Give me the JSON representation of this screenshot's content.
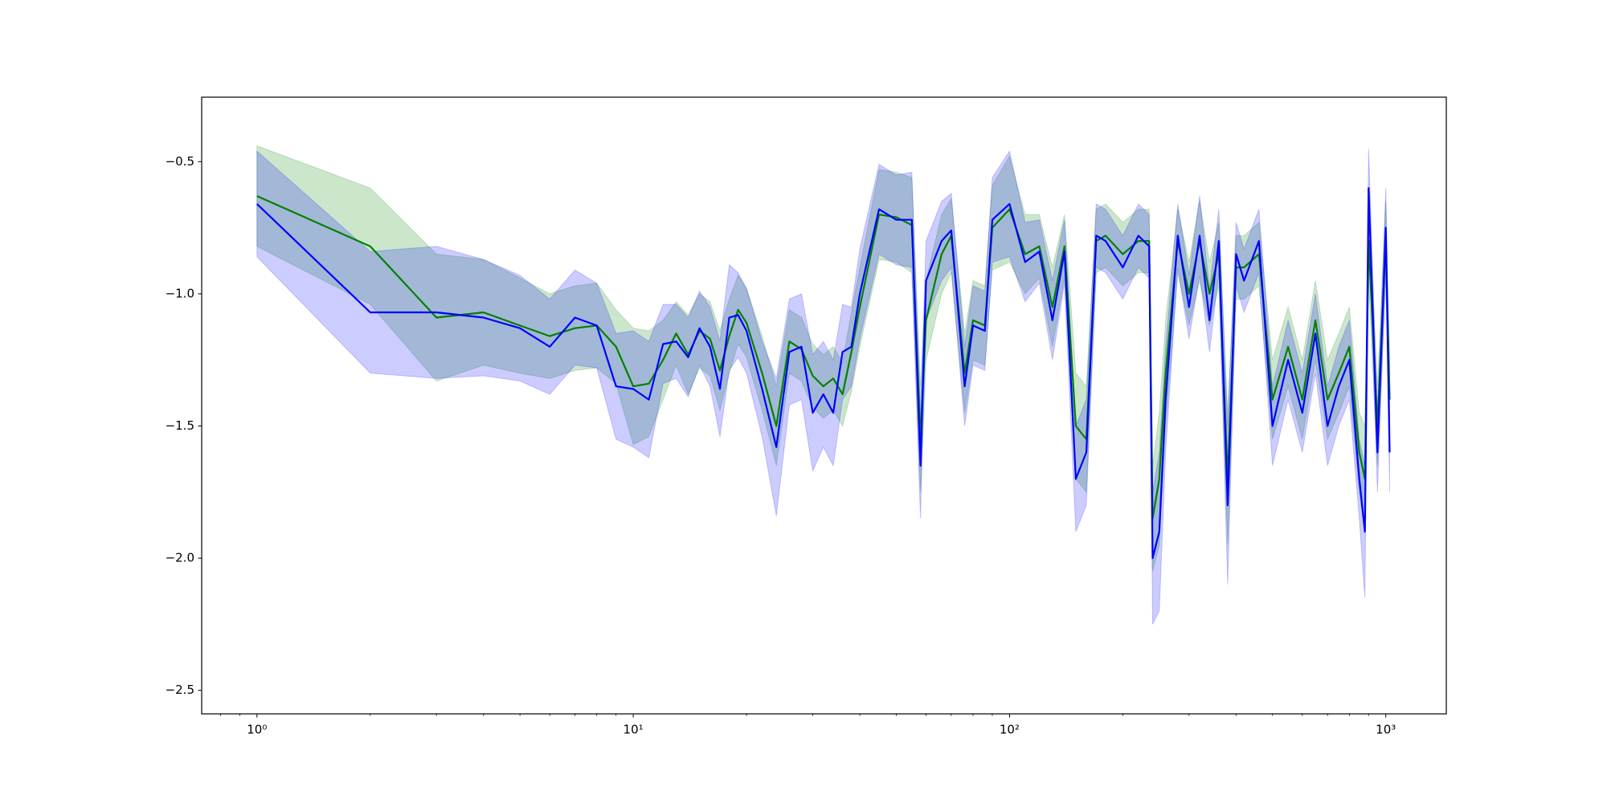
{
  "chart_data": {
    "type": "line",
    "xscale": "log",
    "x": [
      1,
      2,
      3,
      4,
      5,
      6,
      7,
      8,
      9,
      10,
      11,
      12,
      13,
      14,
      15,
      16,
      17,
      18,
      19,
      20,
      22,
      24,
      26,
      28,
      30,
      32,
      34,
      36,
      38,
      40,
      45,
      50,
      55,
      58,
      60,
      66,
      70,
      76,
      80,
      86,
      90,
      100,
      110,
      120,
      130,
      140,
      150,
      160,
      170,
      180,
      200,
      220,
      235,
      240,
      250,
      260,
      280,
      300,
      320,
      340,
      360,
      380,
      400,
      420,
      460,
      500,
      550,
      600,
      650,
      700,
      750,
      800,
      850,
      880,
      900,
      950,
      1000,
      1024
    ],
    "series": [
      {
        "color": "#008000",
        "values": [
          -0.63,
          -0.82,
          -1.09,
          -1.07,
          -1.12,
          -1.16,
          -1.13,
          -1.12,
          -1.2,
          -1.35,
          -1.34,
          -1.25,
          -1.15,
          -1.23,
          -1.14,
          -1.17,
          -1.29,
          -1.16,
          -1.06,
          -1.11,
          -1.3,
          -1.5,
          -1.18,
          -1.21,
          -1.31,
          -1.35,
          -1.32,
          -1.38,
          -1.22,
          -1.05,
          -0.7,
          -0.71,
          -0.74,
          -1.55,
          -1.1,
          -0.85,
          -0.78,
          -1.3,
          -1.1,
          -1.12,
          -0.75,
          -0.68,
          -0.85,
          -0.82,
          -1.05,
          -0.82,
          -1.5,
          -1.55,
          -0.8,
          -0.78,
          -0.85,
          -0.8,
          -0.8,
          -1.85,
          -1.7,
          -1.3,
          -0.8,
          -1.0,
          -0.8,
          -1.0,
          -0.85,
          -1.7,
          -0.9,
          -0.9,
          -0.85,
          -1.4,
          -1.2,
          -1.4,
          -1.1,
          -1.4,
          -1.3,
          -1.2,
          -1.6,
          -1.7,
          -0.8,
          -1.5,
          -0.8,
          -1.4
        ],
        "error": [
          0.19,
          0.22,
          0.24,
          0.2,
          0.18,
          0.16,
          0.16,
          0.16,
          0.14,
          0.22,
          0.2,
          0.15,
          0.12,
          0.15,
          0.14,
          0.14,
          0.15,
          0.14,
          0.13,
          0.13,
          0.14,
          0.15,
          0.12,
          0.12,
          0.12,
          0.12,
          0.12,
          0.12,
          0.15,
          0.15,
          0.17,
          0.17,
          0.18,
          0.2,
          0.15,
          0.15,
          0.14,
          0.15,
          0.15,
          0.15,
          0.16,
          0.2,
          0.15,
          0.12,
          0.15,
          0.12,
          0.2,
          0.2,
          0.12,
          0.12,
          0.12,
          0.12,
          0.12,
          0.2,
          0.25,
          0.2,
          0.12,
          0.12,
          0.15,
          0.12,
          0.12,
          0.25,
          0.12,
          0.12,
          0.12,
          0.15,
          0.15,
          0.15,
          0.15,
          0.15,
          0.15,
          0.15,
          0.15,
          0.2,
          0.15,
          0.15,
          0.15,
          0.15
        ]
      },
      {
        "color": "#0000ff",
        "values": [
          -0.66,
          -1.07,
          -1.07,
          -1.09,
          -1.13,
          -1.2,
          -1.09,
          -1.12,
          -1.35,
          -1.36,
          -1.4,
          -1.19,
          -1.18,
          -1.24,
          -1.13,
          -1.2,
          -1.36,
          -1.09,
          -1.08,
          -1.14,
          -1.36,
          -1.58,
          -1.22,
          -1.2,
          -1.45,
          -1.38,
          -1.45,
          -1.22,
          -1.2,
          -1.0,
          -0.68,
          -0.72,
          -0.72,
          -1.65,
          -0.95,
          -0.8,
          -0.76,
          -1.35,
          -1.12,
          -1.14,
          -0.72,
          -0.66,
          -0.88,
          -0.84,
          -1.1,
          -0.84,
          -1.7,
          -1.6,
          -0.78,
          -0.8,
          -0.9,
          -0.78,
          -0.82,
          -2.0,
          -1.9,
          -1.4,
          -0.78,
          -1.05,
          -0.78,
          -1.1,
          -0.8,
          -1.8,
          -0.85,
          -0.95,
          -0.8,
          -1.5,
          -1.25,
          -1.45,
          -1.15,
          -1.5,
          -1.35,
          -1.25,
          -1.7,
          -1.9,
          -0.6,
          -1.6,
          -0.75,
          -1.6
        ],
        "error": [
          0.2,
          0.23,
          0.25,
          0.22,
          0.2,
          0.18,
          0.18,
          0.16,
          0.2,
          0.22,
          0.22,
          0.15,
          0.14,
          0.15,
          0.14,
          0.15,
          0.18,
          0.2,
          0.16,
          0.16,
          0.18,
          0.26,
          0.2,
          0.2,
          0.22,
          0.2,
          0.2,
          0.18,
          0.15,
          0.17,
          0.17,
          0.17,
          0.18,
          0.2,
          0.15,
          0.15,
          0.14,
          0.15,
          0.15,
          0.15,
          0.16,
          0.2,
          0.15,
          0.12,
          0.15,
          0.12,
          0.2,
          0.2,
          0.12,
          0.12,
          0.12,
          0.12,
          0.12,
          0.25,
          0.3,
          0.2,
          0.12,
          0.12,
          0.15,
          0.12,
          0.12,
          0.3,
          0.12,
          0.12,
          0.12,
          0.15,
          0.15,
          0.15,
          0.15,
          0.15,
          0.15,
          0.15,
          0.15,
          0.25,
          0.15,
          0.15,
          0.15,
          0.15
        ]
      }
    ],
    "band_opacity": 0.2,
    "xlim": [
      0.713,
      1448
    ],
    "ylim": [
      -2.589,
      -0.256
    ],
    "xticks": [
      {
        "value": 1,
        "label": "10⁰"
      },
      {
        "value": 10,
        "label": "10¹"
      },
      {
        "value": 100,
        "label": "10²"
      },
      {
        "value": 1000,
        "label": "10³"
      }
    ],
    "xminorticks": [
      0.8,
      0.9,
      2,
      3,
      4,
      5,
      6,
      7,
      8,
      9,
      20,
      30,
      40,
      50,
      60,
      70,
      80,
      90,
      200,
      300,
      400,
      500,
      600,
      700,
      800,
      900
    ],
    "yticks": [
      {
        "value": -2.5,
        "label": "−2.5"
      },
      {
        "value": -2.0,
        "label": "−2.0"
      },
      {
        "value": -1.5,
        "label": "−1.5"
      },
      {
        "value": -1.0,
        "label": "−1.0"
      },
      {
        "value": -0.5,
        "label": "−0.5"
      }
    ],
    "grid": false
  }
}
